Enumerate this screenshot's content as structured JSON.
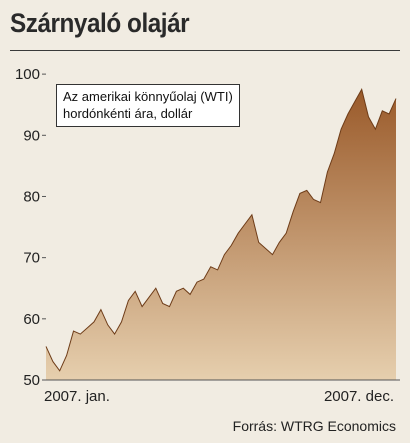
{
  "title": "Szárnyaló olajár",
  "note": {
    "line1": "Az amerikai könnyűolaj (WTI)",
    "line2": "hordónkénti ára, dollár"
  },
  "x_axis": {
    "start_label": "2007. jan.",
    "end_label": "2007. dec."
  },
  "source": "Forrás: WTRG Economics",
  "colors": {
    "area_top": "#9a5a2a",
    "area_bottom": "#e6cfae",
    "background": "#f1ece2"
  },
  "chart_data": {
    "type": "area",
    "x": [
      "2007-01-02",
      "2007-01-09",
      "2007-01-16",
      "2007-01-23",
      "2007-01-30",
      "2007-02-06",
      "2007-02-13",
      "2007-02-20",
      "2007-02-27",
      "2007-03-06",
      "2007-03-13",
      "2007-03-20",
      "2007-03-27",
      "2007-04-03",
      "2007-04-10",
      "2007-04-17",
      "2007-04-24",
      "2007-05-01",
      "2007-05-08",
      "2007-05-15",
      "2007-05-22",
      "2007-05-29",
      "2007-06-05",
      "2007-06-12",
      "2007-06-19",
      "2007-06-26",
      "2007-07-03",
      "2007-07-10",
      "2007-07-17",
      "2007-07-24",
      "2007-07-31",
      "2007-08-07",
      "2007-08-14",
      "2007-08-21",
      "2007-08-28",
      "2007-09-04",
      "2007-09-11",
      "2007-09-18",
      "2007-09-25",
      "2007-10-02",
      "2007-10-09",
      "2007-10-16",
      "2007-10-23",
      "2007-10-30",
      "2007-11-06",
      "2007-11-13",
      "2007-11-20",
      "2007-11-27",
      "2007-12-04",
      "2007-12-11",
      "2007-12-18",
      "2007-12-25"
    ],
    "values": [
      55.5,
      53.0,
      51.5,
      54.0,
      58.0,
      57.5,
      58.5,
      59.5,
      61.5,
      59.0,
      57.5,
      59.5,
      63.0,
      64.5,
      62.0,
      63.5,
      65.0,
      62.5,
      62.0,
      64.5,
      65.0,
      64.0,
      66.0,
      66.5,
      68.5,
      68.0,
      70.5,
      72.0,
      74.0,
      75.5,
      77.0,
      72.5,
      71.5,
      70.5,
      72.5,
      74.0,
      77.5,
      80.5,
      81.0,
      79.5,
      79.0,
      84.0,
      87.0,
      91.0,
      93.5,
      95.5,
      97.5,
      93.0,
      91.0,
      94.0,
      93.5,
      96.0
    ],
    "y_ticks": [
      50,
      60,
      70,
      80,
      90,
      100
    ],
    "ylim": [
      50,
      101
    ],
    "grid": false
  }
}
